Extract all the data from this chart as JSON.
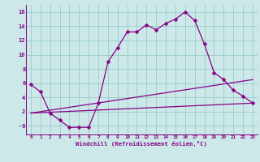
{
  "background_color": "#cce8e8",
  "grid_color": "#99cccc",
  "line_color": "#880088",
  "xlabel": "Windchill (Refroidissement éolien,°C)",
  "xlim": [
    -0.5,
    23.5
  ],
  "ylim": [
    -1.2,
    17
  ],
  "yticks": [
    0,
    2,
    4,
    6,
    8,
    10,
    12,
    14,
    16
  ],
  "ytick_labels": [
    "-0",
    "2",
    "4",
    "6",
    "8",
    "10",
    "12",
    "14",
    "16"
  ],
  "xticks": [
    0,
    1,
    2,
    3,
    4,
    5,
    6,
    7,
    8,
    9,
    10,
    11,
    12,
    13,
    14,
    15,
    16,
    17,
    18,
    19,
    20,
    21,
    22,
    23
  ],
  "line1_x": [
    0,
    1,
    2,
    3,
    4,
    5,
    6,
    7,
    8,
    9,
    10,
    11,
    12,
    13,
    14,
    15,
    16,
    17,
    18,
    19,
    20,
    21,
    22,
    23
  ],
  "line1_y": [
    5.8,
    4.8,
    1.8,
    0.8,
    -0.2,
    -0.2,
    -0.2,
    3.2,
    9.0,
    11.0,
    13.2,
    13.2,
    14.2,
    13.5,
    14.4,
    15.0,
    16.0,
    14.8,
    11.5,
    7.5,
    6.5,
    5.0,
    4.2,
    3.2
  ],
  "line2_x": [
    0,
    23
  ],
  "line2_y": [
    1.8,
    6.5
  ],
  "line3_x": [
    0,
    23
  ],
  "line3_y": [
    1.8,
    3.2
  ],
  "markersize": 2.5,
  "linewidth": 0.9
}
